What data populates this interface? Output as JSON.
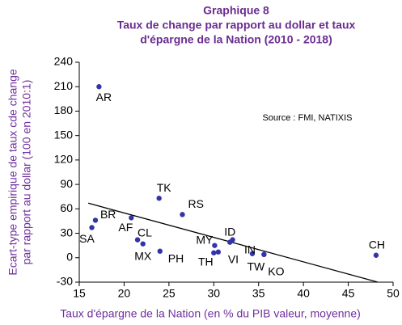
{
  "chart_data": {
    "type": "scatter",
    "title": [
      "Graphique 8",
      "Taux de change par rapport au dollar et taux",
      "d'épargne de la Nation (2010 - 2018)"
    ],
    "xlabel": "Taux d'épargne de la Nation (en % du PIB valeur, moyenne)",
    "ylabel": [
      "Ecart-type empirique de taux cde change",
      "par rapport au dollar (100 en 2010:1)"
    ],
    "annotation": "Source : FMI, NATIXIS",
    "labels": [
      "AR",
      "BR",
      "SA",
      "AF",
      "CL",
      "MX",
      "PH",
      "TK",
      "RS",
      "MY",
      "TH",
      "VI",
      "ID",
      null,
      "IN",
      "TW",
      "KO",
      "CH"
    ],
    "x": [
      17.2,
      16.8,
      16.4,
      20.8,
      21.5,
      22.1,
      24.0,
      23.9,
      26.5,
      30.1,
      30.0,
      30.5,
      31.8,
      32.1,
      34.3,
      35.6,
      35.6,
      48.1
    ],
    "y": [
      210,
      46,
      37,
      49,
      22,
      17,
      8,
      73,
      53,
      15,
      6,
      7,
      19,
      22,
      5,
      4,
      4,
      3
    ],
    "color": "#3333aa",
    "trendline": {
      "x": [
        16,
        48.3
      ],
      "y": [
        67,
        -30
      ]
    },
    "xlim": [
      15,
      50
    ],
    "xticks": [
      15,
      20,
      25,
      30,
      35,
      40,
      45,
      50
    ],
    "ylim": [
      -30,
      240
    ],
    "yticks": [
      -30,
      0,
      30,
      60,
      90,
      120,
      150,
      180,
      210,
      240
    ],
    "grid": false
  }
}
